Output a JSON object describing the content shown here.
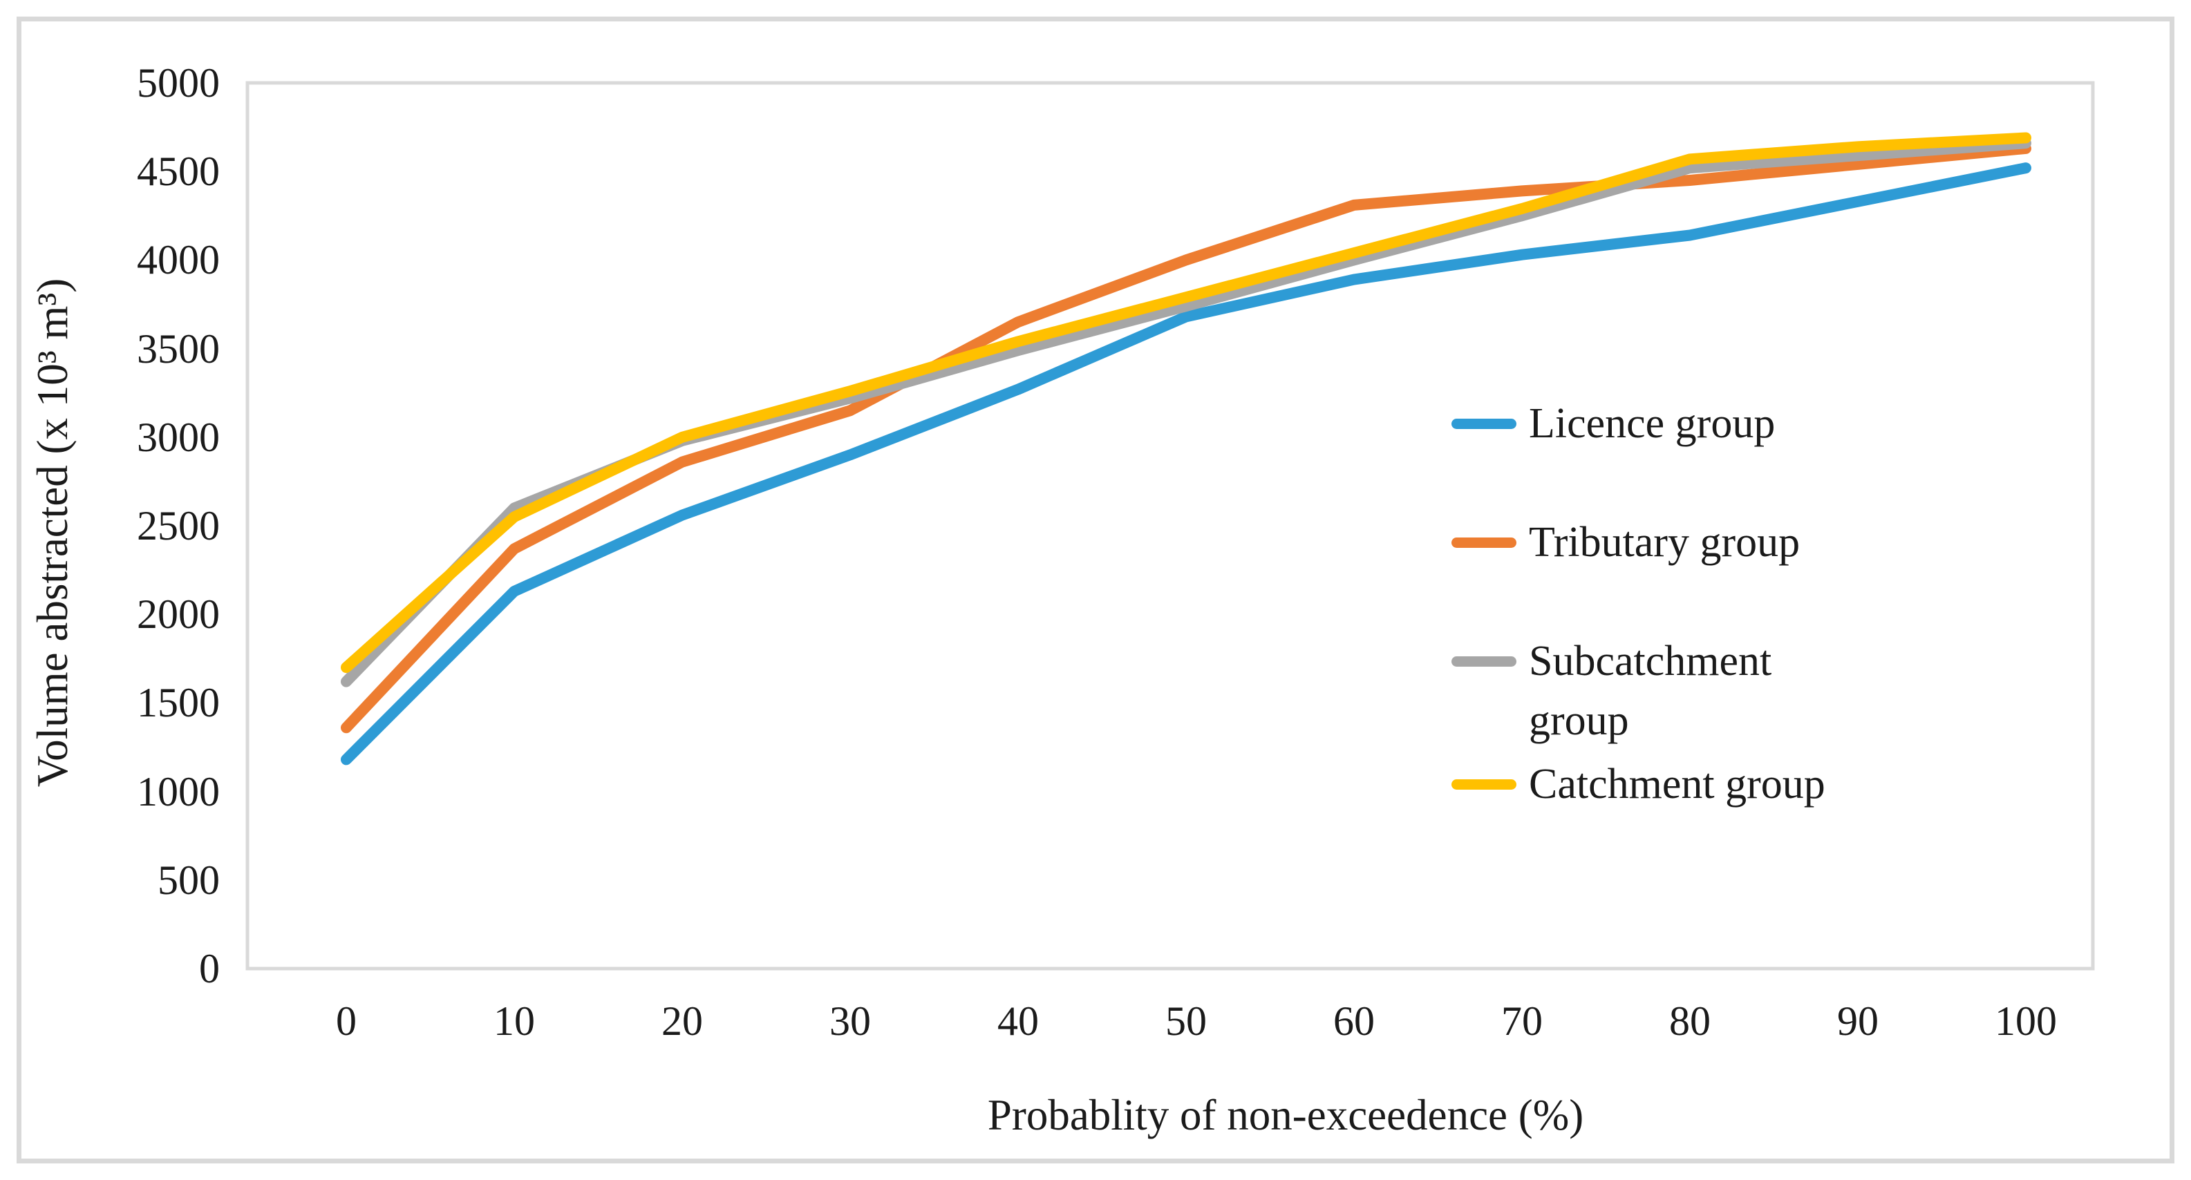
{
  "figure": {
    "y_axis_title": "Volume abstracted (x 10³ m³)",
    "x_axis_title": "Probablity of non-exceedence (%)",
    "plot_border_color": "#d9d9d9",
    "background_color": "#ffffff"
  },
  "chart_data": {
    "type": "line",
    "title": "",
    "xlabel": "Probablity of non-exceedence (%)",
    "ylabel": "Volume abstracted (x 10³ m³)",
    "categories": [
      0,
      10,
      20,
      30,
      40,
      50,
      60,
      70,
      80,
      90,
      100
    ],
    "ylim": [
      0,
      5000
    ],
    "y_tick_step": 500,
    "grid": false,
    "legend_position": "right",
    "series": [
      {
        "name": "Licence group",
        "legend_lines": [
          "Licence group"
        ],
        "color": "#2E9BD5",
        "values": [
          1180,
          2130,
          2560,
          2900,
          3270,
          3680,
          3890,
          4030,
          4140,
          4330,
          4520
        ]
      },
      {
        "name": "Tributary group",
        "legend_lines": [
          "Tributary group"
        ],
        "color": "#ED7D31",
        "values": [
          1360,
          2370,
          2860,
          3150,
          3650,
          4000,
          4310,
          4390,
          4450,
          4540,
          4630
        ]
      },
      {
        "name": "Subcatchment group",
        "legend_lines": [
          "Subcatchment",
          "group"
        ],
        "color": "#A6A6A6",
        "values": [
          1620,
          2600,
          2980,
          3220,
          3490,
          3740,
          4000,
          4250,
          4520,
          4590,
          4660
        ]
      },
      {
        "name": "Catchment group",
        "legend_lines": [
          "Catchment group"
        ],
        "color": "#FFC000",
        "values": [
          1700,
          2550,
          3000,
          3260,
          3540,
          3790,
          4040,
          4290,
          4570,
          4640,
          4690
        ]
      }
    ]
  }
}
